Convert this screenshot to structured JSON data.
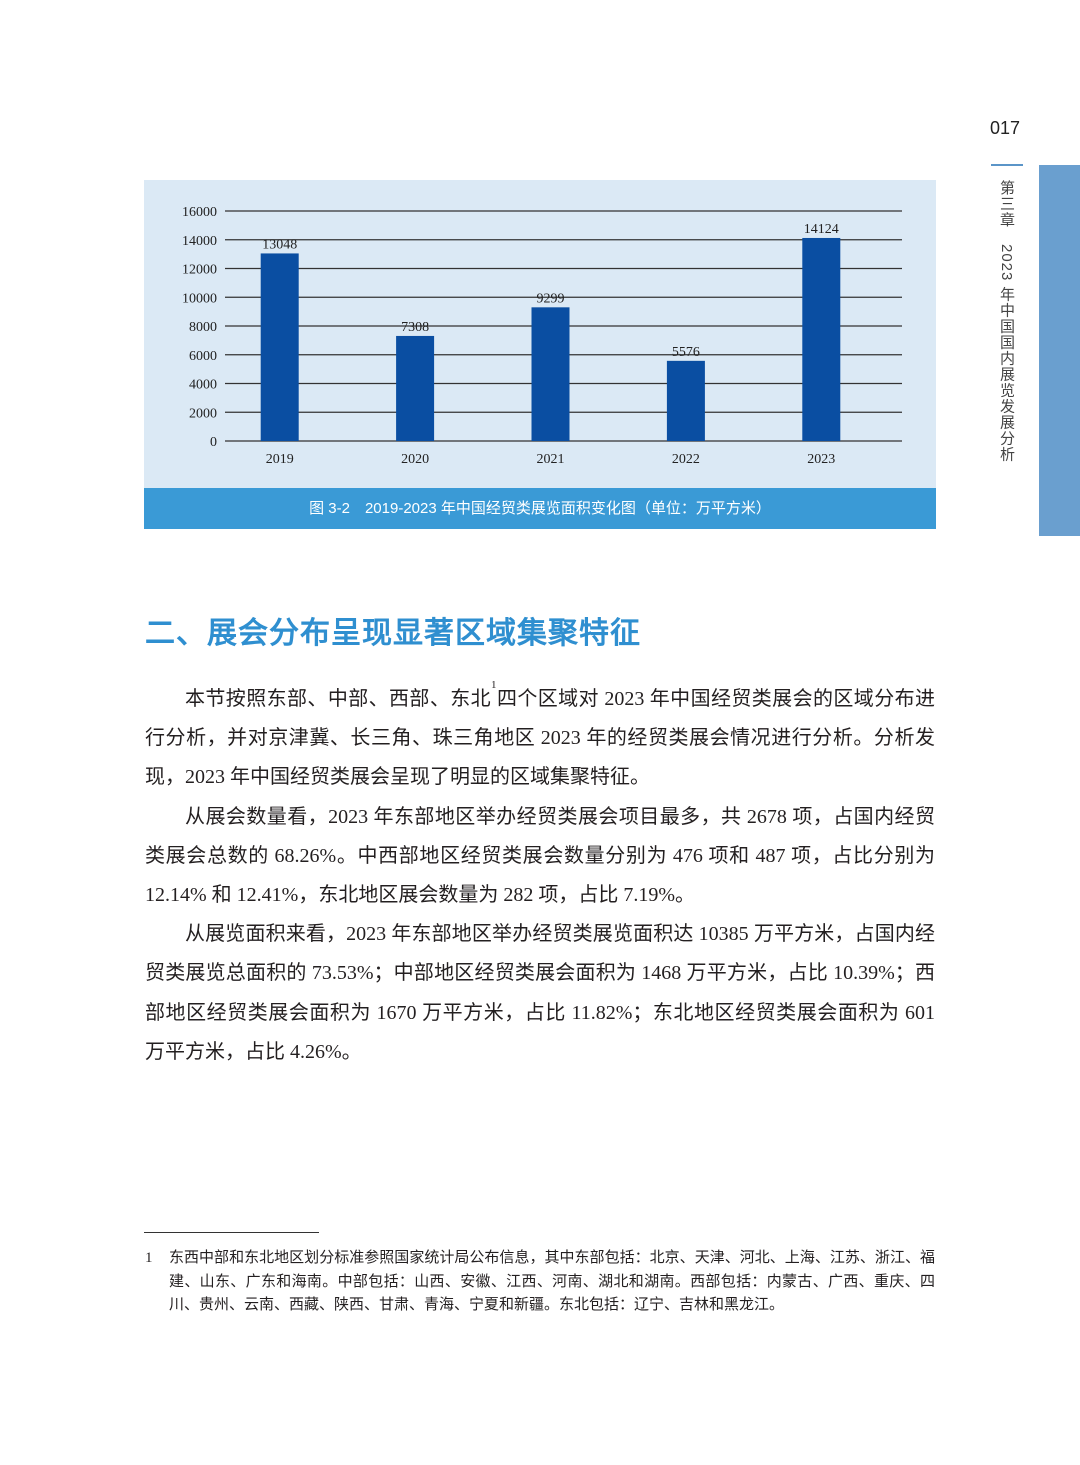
{
  "header": {
    "page_number": "017",
    "side_title": "第三章　2023 年中国国内展览发展分析",
    "accent_color": "#6a9fcf"
  },
  "figure": {
    "caption": "图 3-2　2019-2023 年中国经贸类展览面积变化图（单位：万平方米）"
  },
  "chart_data": {
    "type": "bar",
    "categories": [
      "2019",
      "2020",
      "2021",
      "2022",
      "2023"
    ],
    "values": [
      13048,
      7308,
      9299,
      5576,
      14124
    ],
    "data_labels": [
      "13048",
      "7308",
      "9299",
      "5576",
      "14124"
    ],
    "yticks": [
      "0",
      "2000",
      "4000",
      "6000",
      "8000",
      "10000",
      "12000",
      "14000",
      "16000"
    ],
    "ylim": [
      0,
      16000
    ],
    "grid": true,
    "bar_color": "#0a4ea2",
    "background_color": "#dbe9f5",
    "title": "",
    "xlabel": "",
    "ylabel": ""
  },
  "section": {
    "heading": "二、展会分布呈现显著区域集聚特征",
    "paragraphs": [
      {
        "before_sup": "本节按照东部、中部、西部、东北",
        "sup": "1",
        "after_sup": "四个区域对 2023 年中国经贸类展会的区域分布进行分析，并对京津冀、长三角、珠三角地区 2023 年的经贸类展会情况进行分析。分析发现，2023 年中国经贸类展会呈现了明显的区域集聚特征。"
      },
      {
        "text": "从展会数量看，2023 年东部地区举办经贸类展会项目最多，共 2678 项，占国内经贸类展会总数的 68.26%。中西部地区经贸类展会数量分别为 476 项和 487 项，占比分别为 12.14% 和 12.41%，东北地区展会数量为 282 项，占比 7.19%。"
      },
      {
        "text": "从展览面积来看，2023 年东部地区举办经贸类展览面积达 10385 万平方米，占国内经贸类展览总面积的 73.53%；中部地区经贸类展会面积为 1468 万平方米，占比 10.39%；西部地区经贸类展会面积为 1670 万平方米，占比 11.82%；东北地区经贸类展会面积为 601 万平方米，占比 4.26%。"
      }
    ]
  },
  "footnote": {
    "number": "1",
    "text": "东西中部和东北地区划分标准参照国家统计局公布信息，其中东部包括：北京、天津、河北、上海、江苏、浙江、福建、山东、广东和海南。中部包括：山西、安徽、江西、河南、湖北和湖南。西部包括：内蒙古、广西、重庆、四川、贵州、云南、西藏、陕西、甘肃、青海、宁夏和新疆。东北包括：辽宁、吉林和黑龙江。"
  }
}
